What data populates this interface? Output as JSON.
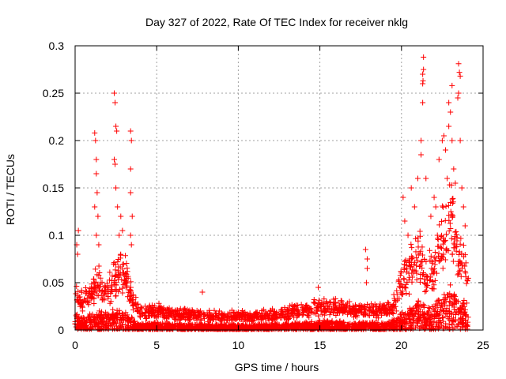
{
  "chart_data": {
    "type": "scatter",
    "title": "Day 327 of 2022, Rate Of TEC Index for receiver nklg",
    "xlabel": "GPS time / hours",
    "ylabel": "ROTI / TECUs",
    "xlim": [
      0,
      25
    ],
    "ylim": [
      0,
      0.3
    ],
    "xticks": [
      "0",
      "5",
      "10",
      "15",
      "20",
      "25"
    ],
    "yticks": [
      "0",
      "0.05",
      "0.1",
      "0.15",
      "0.2",
      "0.25",
      "0.3"
    ],
    "grid": true,
    "marker": "plus",
    "color": "#ff0000",
    "dense_band": {
      "description_hours": [
        0,
        0.5,
        1,
        1.5,
        2,
        2.5,
        3,
        3.5,
        4,
        5,
        6,
        7,
        8,
        9,
        10,
        11,
        12,
        13,
        14,
        15,
        16,
        17,
        18,
        19,
        19.5,
        20,
        20.5,
        21,
        21.5,
        22,
        22.5,
        23,
        23.5,
        24.1
      ],
      "upper_roti": [
        0.05,
        0.04,
        0.05,
        0.06,
        0.05,
        0.07,
        0.08,
        0.04,
        0.022,
        0.025,
        0.02,
        0.02,
        0.018,
        0.018,
        0.018,
        0.018,
        0.02,
        0.022,
        0.025,
        0.03,
        0.03,
        0.025,
        0.025,
        0.025,
        0.03,
        0.06,
        0.08,
        0.1,
        0.07,
        0.08,
        0.12,
        0.14,
        0.1,
        0.08
      ]
    },
    "points": [
      [
        0.2,
        0.105
      ],
      [
        0.1,
        0.09
      ],
      [
        0.15,
        0.08
      ],
      [
        1.2,
        0.208
      ],
      [
        1.25,
        0.2
      ],
      [
        1.3,
        0.18
      ],
      [
        1.3,
        0.165
      ],
      [
        1.35,
        0.145
      ],
      [
        1.2,
        0.13
      ],
      [
        1.3,
        0.1
      ],
      [
        1.4,
        0.12
      ],
      [
        1.45,
        0.09
      ],
      [
        2.4,
        0.25
      ],
      [
        2.45,
        0.24
      ],
      [
        2.5,
        0.215
      ],
      [
        2.55,
        0.21
      ],
      [
        2.4,
        0.18
      ],
      [
        2.45,
        0.175
      ],
      [
        2.5,
        0.15
      ],
      [
        2.6,
        0.13
      ],
      [
        2.8,
        0.12
      ],
      [
        2.9,
        0.105
      ],
      [
        2.7,
        0.1
      ],
      [
        3.4,
        0.21
      ],
      [
        3.45,
        0.2
      ],
      [
        3.4,
        0.17
      ],
      [
        3.4,
        0.145
      ],
      [
        3.5,
        0.12
      ],
      [
        3.4,
        0.1
      ],
      [
        3.45,
        0.09
      ],
      [
        7.8,
        0.04
      ],
      [
        14.9,
        0.045
      ],
      [
        17.8,
        0.085
      ],
      [
        17.9,
        0.075
      ],
      [
        17.9,
        0.065
      ],
      [
        17.85,
        0.05
      ],
      [
        20.1,
        0.14
      ],
      [
        20.2,
        0.115
      ],
      [
        20.4,
        0.1
      ],
      [
        20.6,
        0.15
      ],
      [
        20.8,
        0.13
      ],
      [
        21.0,
        0.16
      ],
      [
        21.2,
        0.185
      ],
      [
        21.2,
        0.2
      ],
      [
        21.3,
        0.24
      ],
      [
        21.3,
        0.26
      ],
      [
        21.32,
        0.263
      ],
      [
        21.35,
        0.275
      ],
      [
        21.35,
        0.288
      ],
      [
        21.3,
        0.27
      ],
      [
        21.5,
        0.16
      ],
      [
        22.0,
        0.14
      ],
      [
        22.2,
        0.1
      ],
      [
        22.3,
        0.18
      ],
      [
        22.5,
        0.2
      ],
      [
        22.6,
        0.205
      ],
      [
        22.7,
        0.19
      ],
      [
        22.8,
        0.16
      ],
      [
        22.9,
        0.215
      ],
      [
        23.0,
        0.23
      ],
      [
        23.1,
        0.2
      ],
      [
        23.2,
        0.17
      ],
      [
        23.3,
        0.155
      ],
      [
        23.5,
        0.281
      ],
      [
        23.55,
        0.272
      ],
      [
        23.6,
        0.268
      ],
      [
        23.5,
        0.25
      ],
      [
        23.45,
        0.245
      ],
      [
        23.6,
        0.2
      ],
      [
        23.7,
        0.15
      ],
      [
        23.9,
        0.11
      ],
      [
        23.1,
        0.258
      ],
      [
        22.9,
        0.24
      ],
      [
        21.8,
        0.12
      ],
      [
        22.1,
        0.13
      ],
      [
        23.8,
        0.13
      ]
    ]
  }
}
